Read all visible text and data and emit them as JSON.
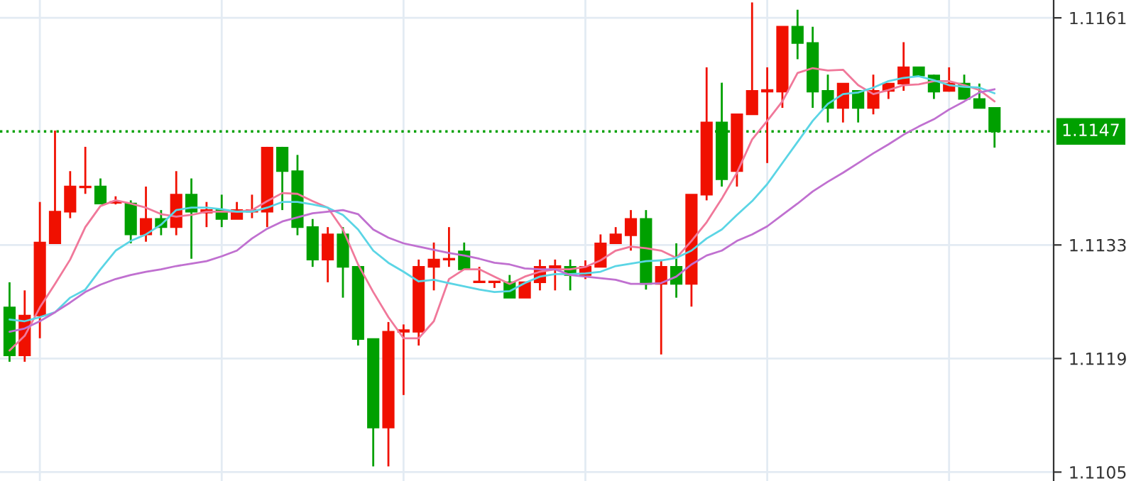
{
  "chart_data": {
    "type": "candlestick",
    "categories": [
      null,
      null,
      null,
      null,
      null,
      null,
      null,
      null,
      null,
      null,
      null,
      null,
      null,
      null,
      null,
      null,
      null,
      null,
      null,
      null,
      null,
      null,
      null,
      null,
      null,
      null,
      null,
      null,
      null,
      null,
      null,
      null,
      null,
      null,
      null,
      null,
      null,
      null,
      null,
      null,
      null,
      null,
      null,
      null,
      null,
      null,
      null,
      null,
      null,
      null,
      null,
      null,
      null,
      null,
      null,
      null,
      null,
      null,
      null,
      null,
      null,
      null,
      null,
      null,
      null,
      null
    ],
    "ohlc": [
      [
        1.11253,
        1.11284,
        1.11186,
        1.11194
      ],
      [
        1.11194,
        1.11274,
        1.11186,
        1.11243
      ],
      [
        1.11243,
        1.11383,
        1.11215,
        1.11333
      ],
      [
        1.11332,
        1.11471,
        1.11332,
        1.11371
      ],
      [
        1.11371,
        1.11421,
        1.11363,
        1.11402
      ],
      [
        1.11401,
        1.11451,
        1.11393,
        1.11402
      ],
      [
        1.11402,
        1.11412,
        1.11381,
        1.11381
      ],
      [
        1.11382,
        1.1139,
        1.1138,
        1.11383
      ],
      [
        1.11381,
        1.11385,
        1.11332,
        1.11343
      ],
      [
        1.11343,
        1.11402,
        1.11334,
        1.11362
      ],
      [
        1.11362,
        1.11373,
        1.11342,
        1.11352
      ],
      [
        1.11352,
        1.11421,
        1.11342,
        1.11392
      ],
      [
        1.11392,
        1.11412,
        1.11313,
        1.11371
      ],
      [
        1.1137,
        1.11383,
        1.11352,
        1.11373
      ],
      [
        1.11373,
        1.11392,
        1.11352,
        1.11362
      ],
      [
        1.11362,
        1.11383,
        1.11362,
        1.11373
      ],
      [
        1.11371,
        1.11392,
        1.11363,
        1.11373
      ],
      [
        1.11371,
        1.11451,
        1.11352,
        1.1145
      ],
      [
        1.1145,
        1.11451,
        1.11373,
        1.11421
      ],
      [
        1.11421,
        1.11441,
        1.11342,
        1.11352
      ],
      [
        1.11352,
        1.11362,
        1.11303,
        1.11312
      ],
      [
        1.11312,
        1.11352,
        1.11284,
        1.11343
      ],
      [
        1.11343,
        1.11352,
        1.11265,
        1.11303
      ],
      [
        1.11303,
        1.11304,
        1.11206,
        1.11214
      ],
      [
        1.11214,
        1.11214,
        1.11057,
        1.11105
      ],
      [
        1.11105,
        1.11235,
        1.11057,
        1.11223
      ],
      [
        1.11223,
        1.11232,
        1.11145,
        1.11225
      ],
      [
        1.11223,
        1.11312,
        1.11206,
        1.11303
      ],
      [
        1.11303,
        1.11333,
        1.11274,
        1.11312
      ],
      [
        1.11312,
        1.11352,
        1.11303,
        1.11313
      ],
      [
        1.11322,
        1.11333,
        1.113,
        1.113
      ],
      [
        1.11284,
        1.11303,
        1.11284,
        1.11285
      ],
      [
        1.11284,
        1.11285,
        1.11277,
        1.11285
      ],
      [
        1.11284,
        1.11293,
        1.11265,
        1.11265
      ],
      [
        1.11265,
        1.11284,
        1.11265,
        1.11284
      ],
      [
        1.11284,
        1.11312,
        1.11274,
        1.11303
      ],
      [
        1.11302,
        1.11312,
        1.11274,
        1.11304
      ],
      [
        1.11303,
        1.11312,
        1.11274,
        1.11293
      ],
      [
        1.11293,
        1.11311,
        1.11288,
        1.11303
      ],
      [
        1.11303,
        1.11343,
        1.11303,
        1.11332
      ],
      [
        1.11332,
        1.11352,
        1.11332,
        1.11343
      ],
      [
        1.11342,
        1.11373,
        1.11323,
        1.11362
      ],
      [
        1.11362,
        1.11373,
        1.11275,
        1.11282
      ],
      [
        1.11282,
        1.11312,
        1.11195,
        1.11303
      ],
      [
        1.11303,
        1.11332,
        1.11265,
        1.11282
      ],
      [
        1.11282,
        1.11392,
        1.11254,
        1.11392
      ],
      [
        1.11392,
        1.11549,
        1.11385,
        1.11481
      ],
      [
        1.11481,
        1.1153,
        1.11402,
        1.11411
      ],
      [
        1.11421,
        1.11491,
        1.11402,
        1.11491
      ],
      [
        1.11491,
        1.11629,
        1.11491,
        1.1152
      ],
      [
        1.11519,
        1.11549,
        1.11431,
        1.11521
      ],
      [
        1.11519,
        1.11599,
        1.11499,
        1.11599
      ],
      [
        1.11599,
        1.1162,
        1.11559,
        1.11579
      ],
      [
        1.11579,
        1.11599,
        1.11499,
        1.11519
      ],
      [
        1.1152,
        1.1154,
        1.11481,
        1.11499
      ],
      [
        1.11499,
        1.11529,
        1.11481,
        1.11529
      ],
      [
        1.1152,
        1.1152,
        1.11481,
        1.11499
      ],
      [
        1.11499,
        1.1154,
        1.11491,
        1.1152
      ],
      [
        1.1152,
        1.11529,
        1.1151,
        1.11529
      ],
      [
        1.11529,
        1.1158,
        1.1152,
        1.11549
      ],
      [
        1.11549,
        1.11549,
        1.11539,
        1.11539
      ],
      [
        1.11539,
        1.1154,
        1.1151,
        1.11519
      ],
      [
        1.1152,
        1.11549,
        1.11519,
        1.11529
      ],
      [
        1.11529,
        1.1154,
        1.1151,
        1.1151
      ],
      [
        1.1151,
        1.11529,
        1.11499,
        1.11499
      ],
      [
        1.11499,
        1.11499,
        1.1145,
        1.1147
      ]
    ],
    "colors": [
      "#00a000",
      "#f01000",
      "#f01000",
      "#f01000",
      "#f01000",
      "#f01000",
      "#00a000",
      "#f01000",
      "#00a000",
      "#f01000",
      "#00a000",
      "#f01000",
      "#00a000",
      "#f01000",
      "#00a000",
      "#f01000",
      "#f01000",
      "#f01000",
      "#00a000",
      "#00a000",
      "#00a000",
      "#f01000",
      "#00a000",
      "#00a000",
      "#00a000",
      "#f01000",
      "#f01000",
      "#f01000",
      "#f01000",
      "#f01000",
      "#00a000",
      "#f01000",
      "#f01000",
      "#00a000",
      "#f01000",
      "#f01000",
      "#f01000",
      "#00a000",
      "#f01000",
      "#f01000",
      "#f01000",
      "#f01000",
      "#00a000",
      "#f01000",
      "#00a000",
      "#f01000",
      "#f01000",
      "#00a000",
      "#f01000",
      "#f01000",
      "#f01000",
      "#f01000",
      "#00a000",
      "#00a000",
      "#00a000",
      "#f01000",
      "#00a000",
      "#f01000",
      "#f01000",
      "#f01000",
      "#00a000",
      "#00a000",
      "#f01000",
      "#00a000",
      "#00a000",
      "#00a000"
    ],
    "series": [
      {
        "type": "line",
        "color": "#f0789a",
        "values": [
          1.112,
          1.11218,
          1.11253,
          1.11282,
          1.11312,
          1.11352,
          1.11378,
          1.11385,
          1.11381,
          1.11376,
          1.11368,
          1.11365,
          1.11367,
          1.11371,
          1.11371,
          1.11371,
          1.11373,
          1.11384,
          1.11394,
          1.11393,
          1.11384,
          1.11376,
          1.11349,
          1.11306,
          1.11272,
          1.11241,
          1.11215,
          1.11215,
          1.11236,
          1.11288,
          1.113,
          1.113,
          1.11291,
          1.11282,
          1.11291,
          1.11297,
          1.113,
          1.113,
          1.11303,
          1.11311,
          1.11323,
          1.11328,
          1.11326,
          1.11323,
          1.11314,
          1.11335,
          1.11358,
          1.11387,
          1.11419,
          1.1146,
          1.11483,
          1.11507,
          1.11542,
          1.11548,
          1.11545,
          1.11546,
          1.11527,
          1.11516,
          1.11521,
          1.11527,
          1.11528,
          1.11532,
          1.11532,
          1.11527,
          1.11521,
          1.11507
        ]
      },
      {
        "type": "line",
        "color": "#5bd5e5",
        "values": [
          1.11238,
          1.11236,
          1.11241,
          1.11247,
          1.11265,
          1.11275,
          1.113,
          1.11323,
          1.11335,
          1.11343,
          1.11355,
          1.11373,
          1.11376,
          1.11376,
          1.11374,
          1.11371,
          1.11371,
          1.11376,
          1.11383,
          1.11383,
          1.1138,
          1.11376,
          1.11367,
          1.11349,
          1.11323,
          1.11308,
          1.11297,
          1.11285,
          1.11287,
          1.11283,
          1.11279,
          1.11275,
          1.11272,
          1.11273,
          1.11283,
          1.11291,
          1.11294,
          1.11294,
          1.11295,
          1.11297,
          1.11304,
          1.11307,
          1.1131,
          1.11311,
          1.11314,
          1.11323,
          1.11338,
          1.11349,
          1.11367,
          1.11384,
          1.11405,
          1.11431,
          1.11457,
          1.11483,
          1.11504,
          1.11516,
          1.11518,
          1.11524,
          1.11532,
          1.11536,
          1.11538,
          1.11533,
          1.11527,
          1.11525,
          1.11524,
          1.11517
        ]
      },
      {
        "type": "line",
        "color": "#c070d0",
        "values": [
          1.11223,
          1.11227,
          1.11236,
          1.11247,
          1.11259,
          1.11272,
          1.11281,
          1.11288,
          1.11293,
          1.11297,
          1.113,
          1.11304,
          1.11307,
          1.1131,
          1.11316,
          1.11323,
          1.11338,
          1.1135,
          1.11359,
          1.11364,
          1.11369,
          1.11371,
          1.11373,
          1.11368,
          1.11349,
          1.11339,
          1.11332,
          1.11328,
          1.11324,
          1.1132,
          1.11317,
          1.11313,
          1.11308,
          1.11306,
          1.11301,
          1.113,
          1.113,
          1.11293,
          1.11291,
          1.11289,
          1.11287,
          1.11282,
          1.11282,
          1.11283,
          1.11291,
          1.11306,
          1.11317,
          1.11323,
          1.11335,
          1.11343,
          1.11353,
          1.11367,
          1.11381,
          1.11396,
          1.11408,
          1.11419,
          1.11431,
          1.11443,
          1.11454,
          1.11466,
          1.11476,
          1.11485,
          1.11497,
          1.11507,
          1.11518,
          1.11522
        ]
      }
    ],
    "ylim": [
      1.11039,
      1.11632
    ],
    "yticks": [
      1.1161,
      1.1133,
      1.1119,
      1.1105
    ],
    "ref_lines": [
      {
        "axis": "y",
        "value": 1.1147,
        "label": "1.1147",
        "color": "#00a000",
        "line_style": "dotted"
      }
    ],
    "grid": true,
    "tick_labels": "y"
  }
}
